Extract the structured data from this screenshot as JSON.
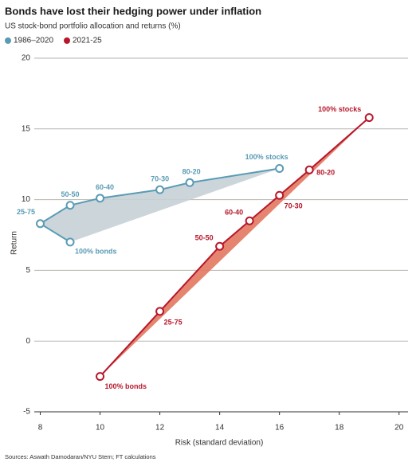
{
  "chart_data": {
    "type": "line",
    "title": "Bonds have lost their hedging power under inflation",
    "subtitle": "US stock-bond portfolio allocation and returns (%)",
    "x_label": "Risk (standard deviation)",
    "y_label": "Return",
    "source": "Sources: Aswath Damodaran/NYU Stern; FT calculations",
    "xlim": [
      7.8,
      20.3
    ],
    "xticks": [
      8,
      10,
      12,
      14,
      16,
      18,
      20
    ],
    "ylim": [
      -5,
      20
    ],
    "yticks": [
      -5,
      0,
      5,
      10,
      15,
      20
    ],
    "grid": true,
    "series": [
      {
        "name": "1986–2020",
        "color": "#5a9bb4",
        "fill": "#c6d2d6",
        "x": [
          9,
          8,
          9,
          10,
          12,
          13,
          16
        ],
        "values": [
          7.0,
          8.3,
          9.6,
          10.1,
          10.7,
          11.2,
          12.2
        ],
        "labels": [
          "100% bonds",
          "25-75",
          "50-50",
          "60-40",
          "70-30",
          "80-20",
          "100% stocks"
        ]
      },
      {
        "name": "2021-25",
        "color": "#b8172b",
        "fill": "#e2775f",
        "x": [
          10,
          12,
          14,
          15,
          16,
          17,
          19
        ],
        "values": [
          -2.5,
          2.1,
          6.7,
          8.5,
          10.3,
          12.1,
          15.8
        ],
        "labels": [
          "100% bonds",
          "25-75",
          "50-50",
          "60-40",
          "70-30",
          "80-20",
          "100% stocks"
        ]
      }
    ]
  }
}
